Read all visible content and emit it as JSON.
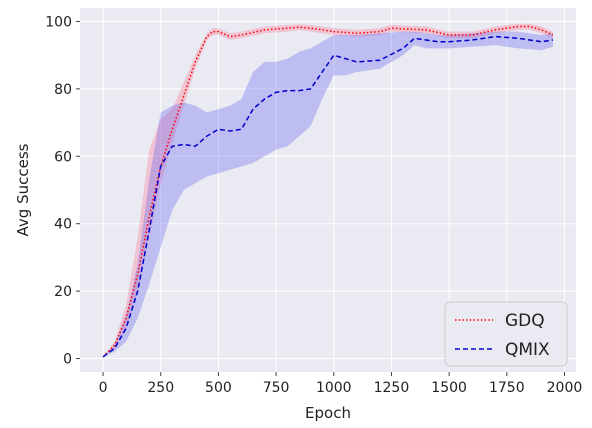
{
  "chart_data": {
    "type": "line",
    "xlabel": "Epoch",
    "ylabel": "Avg Success",
    "xlim": [
      -100,
      2050
    ],
    "ylim": [
      -4,
      104
    ],
    "xticks": [
      0,
      250,
      500,
      750,
      1000,
      1250,
      1500,
      1750,
      2000
    ],
    "yticks": [
      0,
      20,
      40,
      60,
      80,
      100
    ],
    "grid": true,
    "legend_position": "lower-right",
    "series": [
      {
        "name": "GDQ",
        "color": "#ff0000",
        "band_color": "#ff6b8a",
        "line_style": "dotted",
        "x": [
          0,
          50,
          100,
          150,
          200,
          250,
          300,
          350,
          400,
          450,
          475,
          500,
          550,
          600,
          700,
          800,
          850,
          900,
          1000,
          1100,
          1200,
          1250,
          1300,
          1400,
          1500,
          1600,
          1700,
          1800,
          1850,
          1900,
          1950
        ],
        "y": [
          0.5,
          4,
          12,
          25,
          42,
          57,
          68,
          78,
          88,
          95.5,
          97,
          97,
          95.5,
          96,
          97.5,
          98,
          98.3,
          98,
          97,
          96.5,
          97,
          98,
          97.8,
          97.5,
          96,
          96,
          97.5,
          98.5,
          98.5,
          97.5,
          96
        ],
        "lower": [
          0.5,
          3,
          9,
          20,
          36,
          52,
          64,
          75,
          86,
          94.5,
          96,
          96,
          94.5,
          95,
          96.5,
          97,
          97.5,
          97,
          96,
          95.5,
          96,
          97,
          96.8,
          96.5,
          95,
          95,
          96.5,
          97.5,
          97.5,
          96.5,
          95
        ],
        "upper": [
          0.5,
          5,
          16,
          36,
          62,
          71,
          74,
          82,
          90,
          96.5,
          98,
          98,
          96.5,
          97,
          98.5,
          99,
          99.2,
          99,
          98,
          97.5,
          98,
          99,
          98.8,
          98.5,
          97,
          97,
          98.5,
          99.3,
          99.3,
          98.5,
          97
        ]
      },
      {
        "name": "QMIX",
        "color": "#0000cc",
        "band_color": "#5555ee",
        "line_style": "dashed",
        "x": [
          0,
          50,
          100,
          150,
          200,
          250,
          300,
          350,
          400,
          450,
          500,
          550,
          600,
          650,
          700,
          750,
          800,
          850,
          900,
          950,
          1000,
          1050,
          1100,
          1200,
          1300,
          1350,
          1400,
          1450,
          1500,
          1600,
          1700,
          1800,
          1900,
          1950
        ],
        "y": [
          0.5,
          3,
          9,
          20,
          38,
          57,
          63,
          63.5,
          63,
          66,
          68,
          67.5,
          68,
          74,
          77,
          79,
          79.5,
          79.5,
          80,
          85,
          90,
          89,
          88,
          88.5,
          92,
          95,
          94.5,
          94,
          94,
          94.5,
          95.5,
          95,
          94,
          94.5
        ],
        "lower": [
          0.5,
          2,
          5,
          12,
          22,
          33,
          44,
          50,
          52,
          54,
          55,
          56,
          57,
          58,
          60,
          62,
          63,
          66,
          69,
          77,
          84,
          84,
          85,
          86,
          90,
          93,
          92,
          92,
          92,
          92.5,
          93,
          92,
          91.5,
          92.5
        ],
        "upper": [
          0.5,
          4,
          13,
          28,
          53,
          73,
          75,
          76,
          75,
          73,
          74,
          75,
          77,
          85,
          88,
          88,
          89,
          91,
          92,
          94,
          96,
          96,
          96,
          96.5,
          97,
          97,
          96.5,
          96,
          96,
          96.5,
          97,
          97,
          96,
          96.5
        ]
      }
    ]
  }
}
